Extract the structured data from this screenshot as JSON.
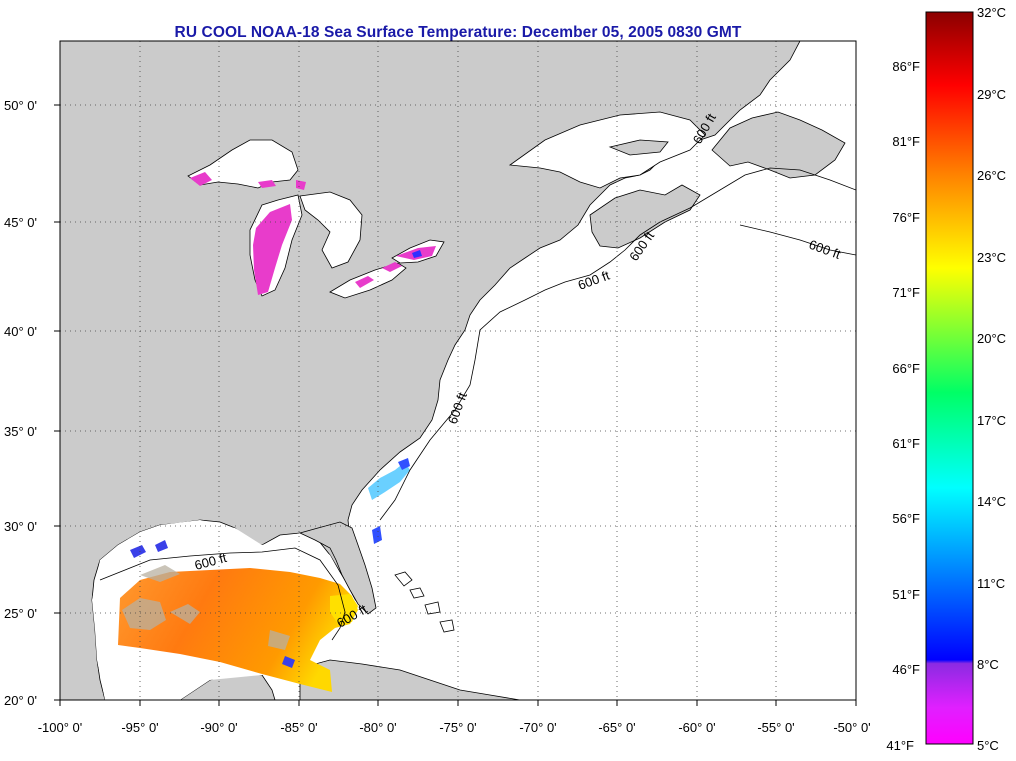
{
  "title": "RU COOL  NOAA-18  Sea Surface Temperature:  December 05, 2005 0830 GMT",
  "map": {
    "lon_range": [
      -100,
      -50
    ],
    "lat_range": [
      20,
      52.5
    ],
    "lon_ticks": [
      "-100° 0'",
      "-95° 0'",
      "-90° 0'",
      "-85° 0'",
      "-80° 0'",
      "-75° 0'",
      "-70° 0'",
      "-65° 0'",
      "-60° 0'",
      "-55° 0'",
      "-50° 0'"
    ],
    "lat_ticks": [
      "20° 0'",
      "25° 0'",
      "30° 0'",
      "35° 0'",
      "40° 0'",
      "45° 0'",
      "50° 0'"
    ],
    "contour_label": "600 ft",
    "land_color": "#cbcbcb",
    "ocean_color": "#ffffff"
  },
  "colorbar": {
    "celsius_labels": [
      "32°C",
      "29°C",
      "26°C",
      "23°C",
      "20°C",
      "17°C",
      "14°C",
      "11°C",
      "8°C",
      "5°C"
    ],
    "fahrenheit_labels": [
      "86°F",
      "81°F",
      "76°F",
      "71°F",
      "66°F",
      "61°F",
      "56°F",
      "51°F",
      "46°F",
      "41°F"
    ],
    "range_c": [
      5,
      32
    ],
    "stops": [
      "#ff00ff",
      "#8b2be2",
      "#0000ff",
      "#00ffff",
      "#00ff66",
      "#ffff00",
      "#ff8000",
      "#ff0000",
      "#8b0000"
    ]
  }
}
